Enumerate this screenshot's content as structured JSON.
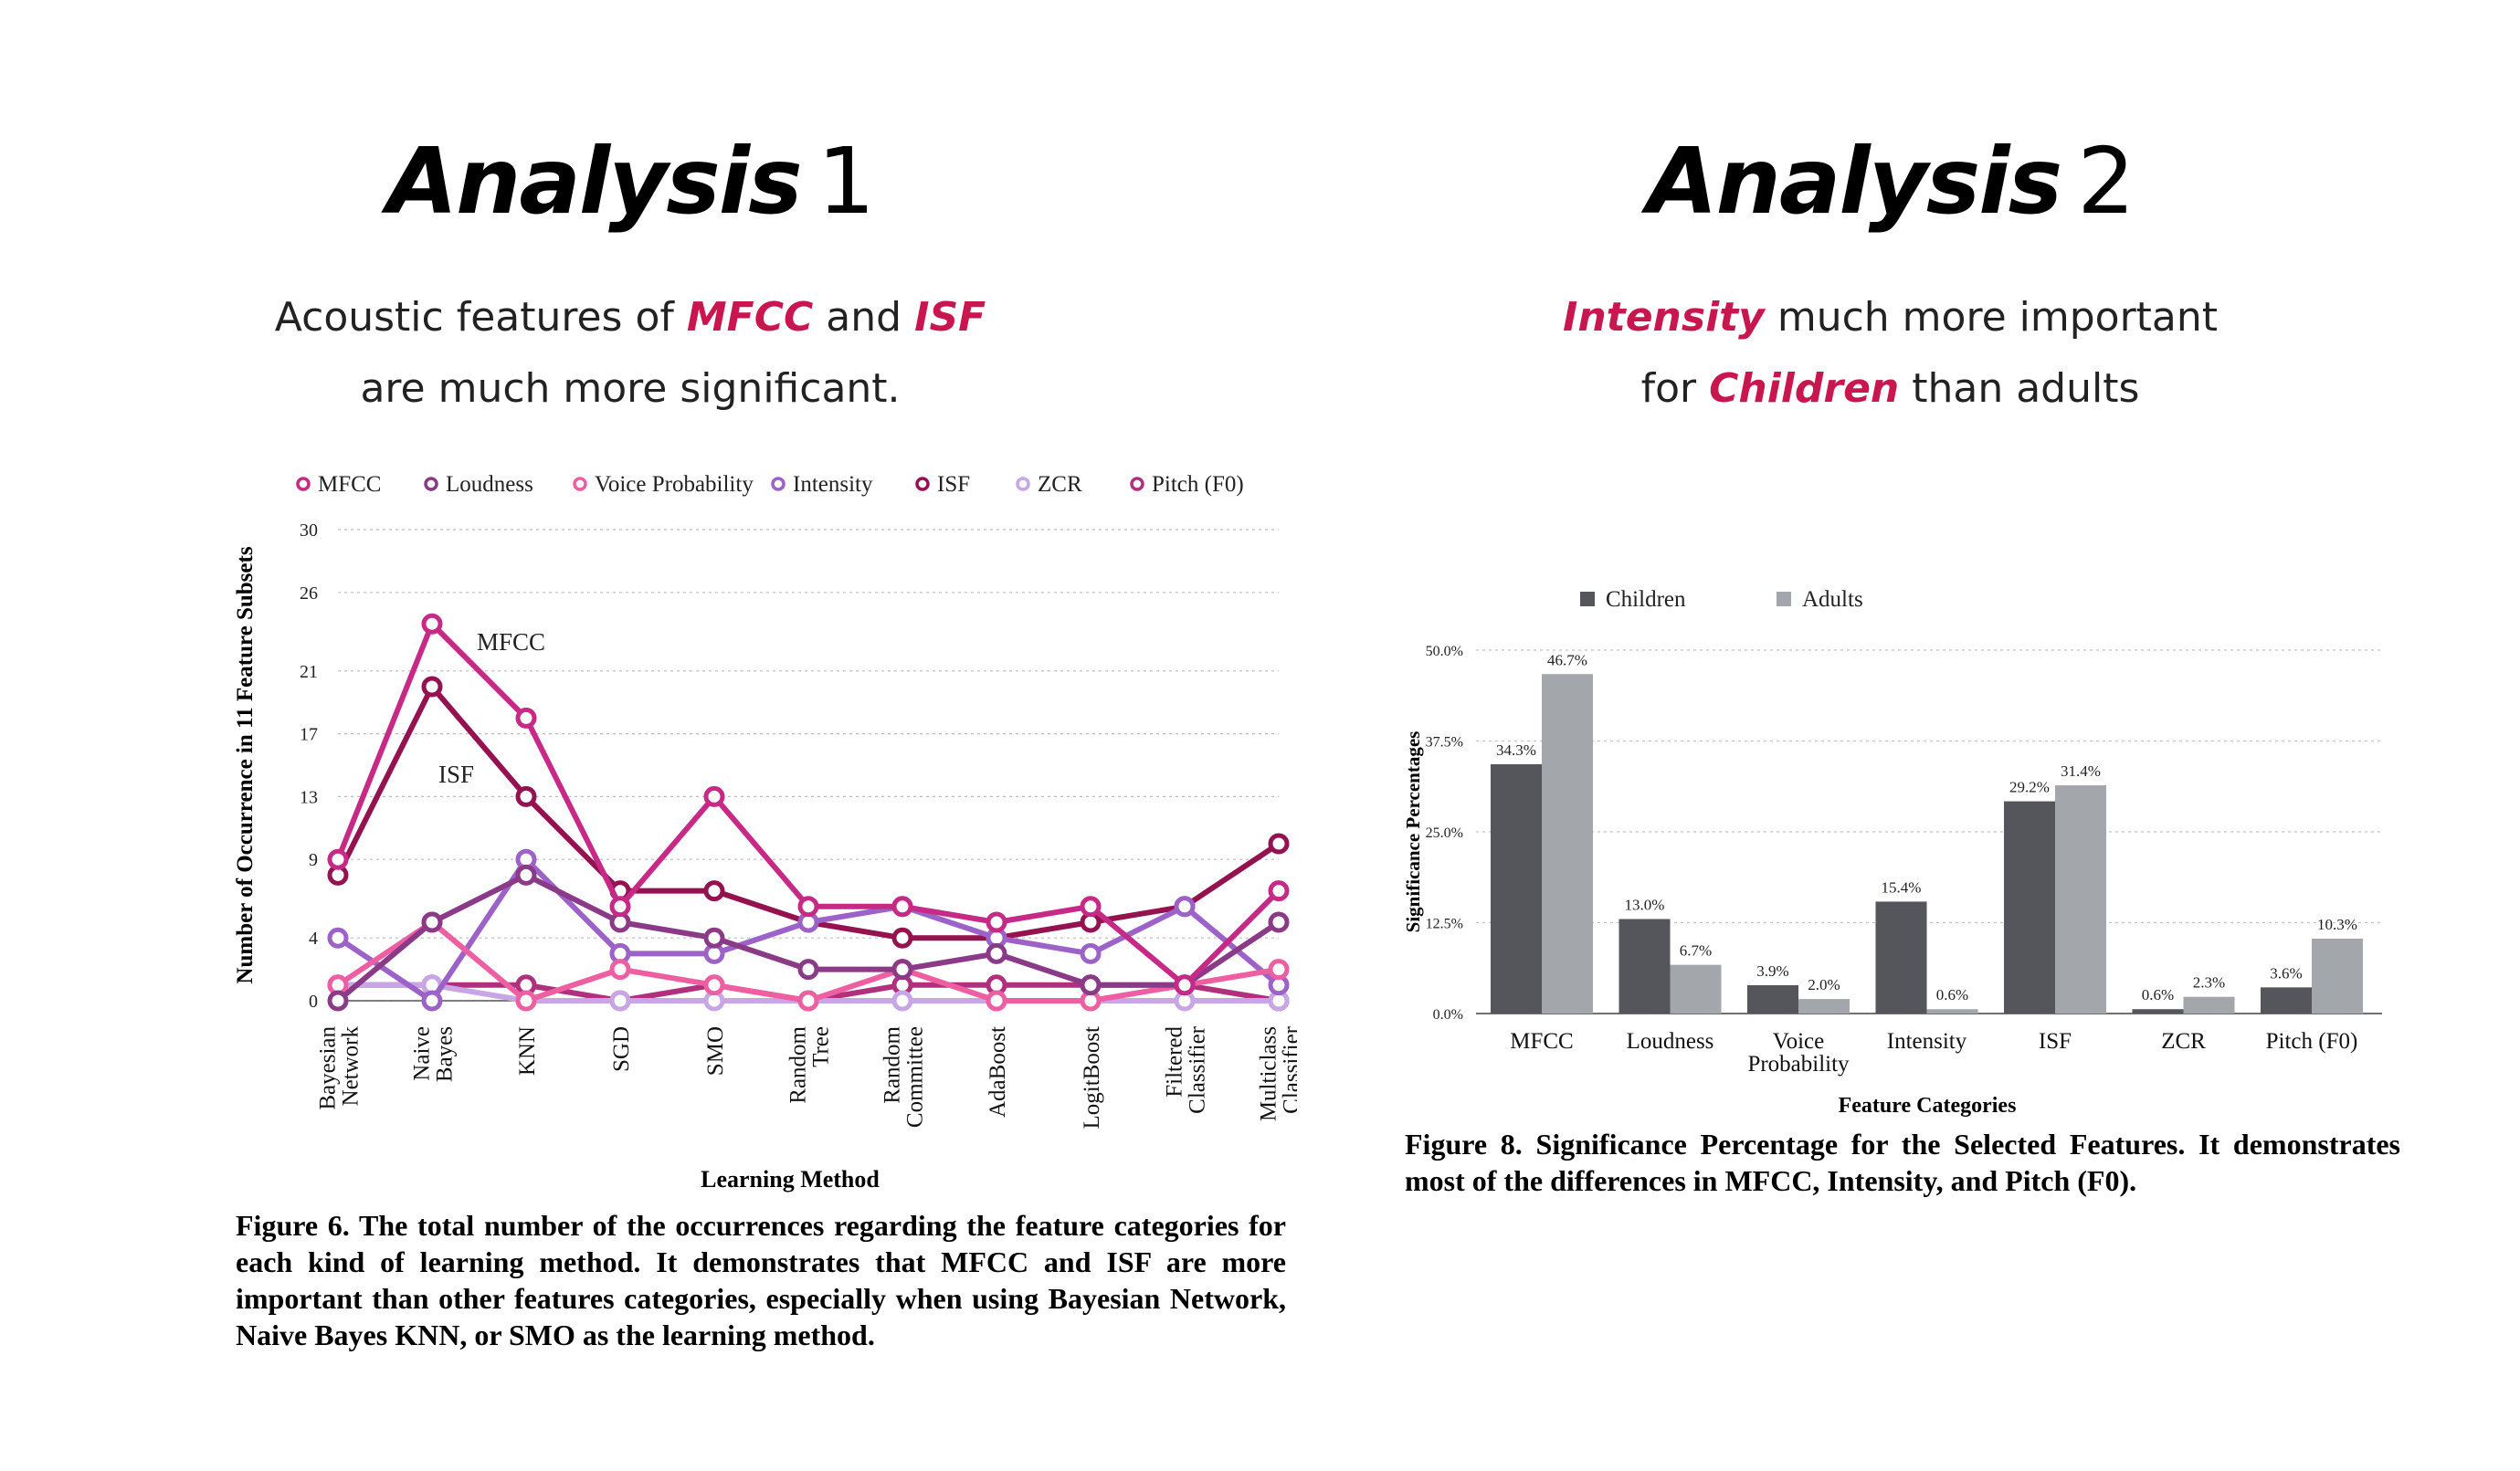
{
  "slides": {
    "left": {
      "title_strong": "Analysis",
      "title_num": "1",
      "subtitle_line1_pre": "Acoustic features of ",
      "subtitle_line1_hl1": "MFCC",
      "subtitle_line1_mid": " and ",
      "subtitle_line1_hl2": "ISF",
      "subtitle_line2": "are much more significant.",
      "caption": "Figure 6.  The total number of the occurrences regarding the feature categories for each kind of learning method.  It demonstrates that MFCC and ISF are more important than other features categories, especially when using Bayesian Network, Naive Bayes KNN, or SMO as the learning method."
    },
    "right": {
      "title_strong": "Analysis",
      "title_num": "2",
      "subtitle_line1_hl": "Intensity",
      "subtitle_line1_post": " much more important",
      "subtitle_line2_pre": "for ",
      "subtitle_line2_hl": "Children",
      "subtitle_line2_post": " than adults",
      "caption": "Figure 8.  Significance Percentage for the Selected Features.  It demonstrates most of the differences in MFCC, Intensity, and Pitch (F0)."
    }
  },
  "colors": {
    "highlight": "#c8174f",
    "children": "#54565c",
    "adults": "#a3a6ab"
  },
  "chart_data": [
    {
      "type": "line",
      "xlabel": "Learning Method",
      "ylabel": "Number of Occurrence in 11 Feature Subsets",
      "ylim": [
        0,
        30
      ],
      "yticks": [
        "0",
        "4",
        "9",
        "13",
        "17",
        "21",
        "26",
        "30"
      ],
      "categories": [
        [
          "Bayesian",
          "Network"
        ],
        [
          "Naive",
          "Bayes"
        ],
        [
          "KNN"
        ],
        [
          "SGD"
        ],
        [
          "SMO"
        ],
        [
          "Random",
          "Tree"
        ],
        [
          "Random",
          "Committee"
        ],
        [
          "AdaBoost"
        ],
        [
          "LogitBoost"
        ],
        [
          "Filtered",
          "Classifier"
        ],
        [
          "Multiclass",
          "Classifier"
        ]
      ],
      "grid": true,
      "legend_position": "top",
      "annotations": [
        "MFCC",
        "ISF"
      ],
      "series": [
        {
          "name": "MFCC",
          "color": "#c62a86",
          "values": [
            9,
            24,
            18,
            6,
            13,
            6,
            6,
            5,
            6,
            1,
            7
          ]
        },
        {
          "name": "Loudness",
          "color": "#8a3a86",
          "values": [
            0,
            5,
            8,
            5,
            4,
            2,
            2,
            3,
            1,
            1,
            5
          ]
        },
        {
          "name": "Voice Probability",
          "color": "#ee5fa2",
          "values": [
            1,
            5,
            0,
            2,
            1,
            0,
            2,
            0,
            0,
            1,
            2
          ]
        },
        {
          "name": "Intensity",
          "color": "#9c62c8",
          "values": [
            4,
            0,
            9,
            3,
            3,
            5,
            6,
            4,
            3,
            6,
            1
          ]
        },
        {
          "name": "ISF",
          "color": "#94124f",
          "values": [
            8,
            20,
            13,
            7,
            7,
            5,
            4,
            4,
            5,
            6,
            10
          ]
        },
        {
          "name": "ZCR",
          "color": "#c8a6e6",
          "values": [
            1,
            1,
            0,
            0,
            0,
            0,
            0,
            0,
            0,
            0,
            0
          ]
        },
        {
          "name": "Pitch (F0)",
          "color": "#b0307e",
          "values": [
            1,
            1,
            1,
            0,
            1,
            0,
            1,
            1,
            1,
            1,
            0
          ]
        }
      ]
    },
    {
      "type": "bar",
      "xlabel": "Feature Categories",
      "ylabel": "Significance Percentages",
      "ylim": [
        0,
        50
      ],
      "yticks": [
        "0.0%",
        "12.5%",
        "25.0%",
        "37.5%",
        "50.0%"
      ],
      "categories": [
        [
          "MFCC"
        ],
        [
          "Loudness"
        ],
        [
          "Voice",
          "Probability"
        ],
        [
          "Intensity"
        ],
        [
          "ISF"
        ],
        [
          "ZCR"
        ],
        [
          "Pitch (F0)"
        ]
      ],
      "grid": true,
      "legend_position": "top",
      "series": [
        {
          "name": "Children",
          "values": [
            34.3,
            13.0,
            3.9,
            15.4,
            29.2,
            0.6,
            3.6
          ],
          "labels": [
            "34.3%",
            "13.0%",
            "3.9%",
            "15.4%",
            "29.2%",
            "0.6%",
            "3.6%"
          ]
        },
        {
          "name": "Adults",
          "values": [
            46.7,
            6.7,
            2.0,
            0.6,
            31.4,
            2.3,
            10.3
          ],
          "labels": [
            "46.7%",
            "6.7%",
            "2.0%",
            "0.6%",
            "31.4%",
            "2.3%",
            "10.3%"
          ]
        }
      ]
    }
  ]
}
